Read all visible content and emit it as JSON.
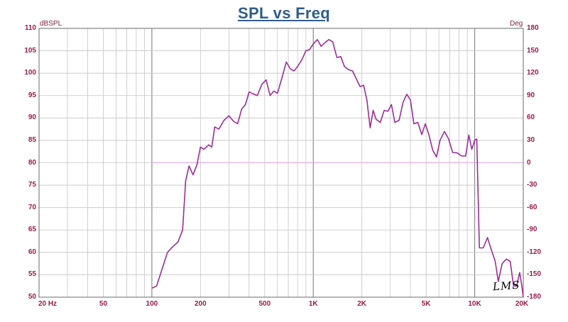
{
  "chart_data": {
    "type": "line",
    "title": "SPL vs Freq",
    "ylabel": "dBSPL",
    "y2label": "Deg",
    "xscale": "log",
    "xlim": [
      20,
      20000
    ],
    "ylim": [
      50,
      110
    ],
    "y2lim": [
      -180,
      180
    ],
    "grid": true,
    "x_ticks": [
      {
        "value": 20,
        "label": "20 Hz"
      },
      {
        "value": 50,
        "label": "50"
      },
      {
        "value": 100,
        "label": "100"
      },
      {
        "value": 200,
        "label": "200"
      },
      {
        "value": 500,
        "label": "500"
      },
      {
        "value": 1000,
        "label": "1K"
      },
      {
        "value": 2000,
        "label": "2K"
      },
      {
        "value": 5000,
        "label": "5K"
      },
      {
        "value": 10000,
        "label": "10K"
      },
      {
        "value": 20000,
        "label": "20K"
      }
    ],
    "y_ticks": [
      "110",
      "105",
      "100",
      "95",
      "90",
      "85",
      "80",
      "75",
      "70",
      "65",
      "60",
      "55",
      "50"
    ],
    "y2_ticks": [
      "180",
      "150",
      "120",
      "90",
      "60",
      "30",
      "0",
      "-30",
      "-60",
      "-90",
      "-120",
      "-150",
      "-180"
    ],
    "reference_line": {
      "y": 80,
      "color": "#e0a0e0"
    },
    "series": [
      {
        "color": "#9b2d9b",
        "points": [
          [
            100,
            52
          ],
          [
            107,
            52.5
          ],
          [
            115,
            56
          ],
          [
            125,
            60
          ],
          [
            135,
            61.3
          ],
          [
            145,
            62.3
          ],
          [
            155,
            65
          ],
          [
            162,
            76
          ],
          [
            170,
            79.3
          ],
          [
            180,
            77.3
          ],
          [
            190,
            79.5
          ],
          [
            200,
            83.5
          ],
          [
            210,
            83
          ],
          [
            225,
            84
          ],
          [
            235,
            83.5
          ],
          [
            245,
            88
          ],
          [
            260,
            87.5
          ],
          [
            280,
            89.5
          ],
          [
            300,
            90.5
          ],
          [
            320,
            89.3
          ],
          [
            340,
            88.7
          ],
          [
            360,
            92
          ],
          [
            380,
            93
          ],
          [
            400,
            95.8
          ],
          [
            430,
            95.3
          ],
          [
            450,
            95
          ],
          [
            480,
            97.5
          ],
          [
            510,
            98.5
          ],
          [
            540,
            95
          ],
          [
            570,
            96
          ],
          [
            600,
            95.5
          ],
          [
            640,
            99
          ],
          [
            680,
            102.5
          ],
          [
            720,
            101
          ],
          [
            760,
            100.5
          ],
          [
            800,
            101.5
          ],
          [
            850,
            103
          ],
          [
            900,
            105
          ],
          [
            950,
            105.3
          ],
          [
            1000,
            106.5
          ],
          [
            1060,
            107.5
          ],
          [
            1120,
            106
          ],
          [
            1180,
            106.8
          ],
          [
            1250,
            107.5
          ],
          [
            1320,
            107
          ],
          [
            1400,
            103.5
          ],
          [
            1480,
            103.7
          ],
          [
            1560,
            101.5
          ],
          [
            1650,
            100.8
          ],
          [
            1750,
            100.5
          ],
          [
            1850,
            98.7
          ],
          [
            1950,
            97
          ],
          [
            2050,
            97.3
          ],
          [
            2150,
            94
          ],
          [
            2250,
            87.8
          ],
          [
            2350,
            91.7
          ],
          [
            2450,
            89.7
          ],
          [
            2600,
            89
          ],
          [
            2750,
            91.7
          ],
          [
            2900,
            91.5
          ],
          [
            3050,
            93
          ],
          [
            3200,
            89
          ],
          [
            3400,
            89.5
          ],
          [
            3600,
            93.5
          ],
          [
            3800,
            95.3
          ],
          [
            4000,
            94
          ],
          [
            4200,
            88.7
          ],
          [
            4450,
            89
          ],
          [
            4700,
            86.3
          ],
          [
            4950,
            88.7
          ],
          [
            5200,
            86.3
          ],
          [
            5500,
            82.8
          ],
          [
            5800,
            81.3
          ],
          [
            6100,
            85
          ],
          [
            6500,
            87
          ],
          [
            6900,
            85.3
          ],
          [
            7300,
            82.3
          ],
          [
            7800,
            82.2
          ],
          [
            8300,
            81.5
          ],
          [
            8800,
            81.5
          ],
          [
            9200,
            86.2
          ],
          [
            9600,
            83
          ],
          [
            10000,
            85
          ],
          [
            10300,
            85.3
          ],
          [
            10700,
            61
          ],
          [
            11300,
            61
          ],
          [
            12000,
            63.3
          ],
          [
            12700,
            60.5
          ],
          [
            13400,
            58
          ],
          [
            14000,
            53.5
          ],
          [
            14800,
            57.5
          ],
          [
            15700,
            58.5
          ],
          [
            16600,
            58
          ],
          [
            17400,
            52.5
          ],
          [
            18200,
            52.5
          ],
          [
            19000,
            55.5
          ],
          [
            19600,
            52.5
          ],
          [
            20000,
            50
          ]
        ]
      }
    ]
  },
  "logo_text": "LMS"
}
